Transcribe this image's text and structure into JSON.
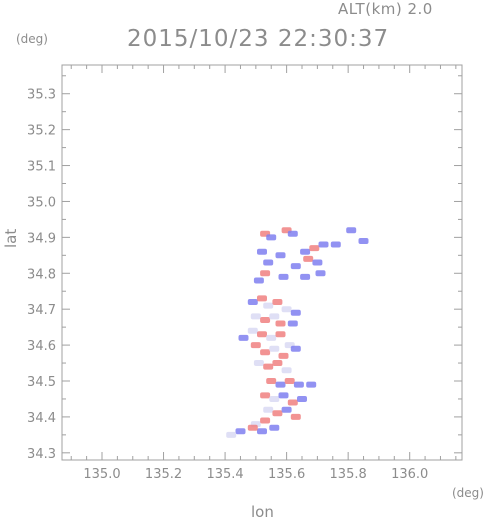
{
  "header": {
    "alt_text": "ALT(km) 2.0",
    "timestamp": "2015/10/23 22:30:37"
  },
  "chart_data": {
    "type": "heatmap",
    "title": "2015/10/23 22:30:37",
    "xlabel": "lon",
    "ylabel": "lat",
    "x_unit": "(deg)",
    "y_unit": "(deg)",
    "xlim": [
      134.87,
      136.17
    ],
    "ylim": [
      34.28,
      35.38
    ],
    "xticks": [
      135.0,
      135.2,
      135.4,
      135.6,
      135.8,
      136.0
    ],
    "xtick_labels": [
      "135.0",
      "135.2",
      "135.4",
      "135.6",
      "135.8",
      "136.0"
    ],
    "yticks": [
      34.3,
      34.4,
      34.5,
      34.6,
      34.7,
      34.8,
      34.9,
      35.0,
      35.1,
      35.2,
      35.3
    ],
    "ytick_labels": [
      "34.3",
      "34.4",
      "34.5",
      "34.6",
      "34.7",
      "34.8",
      "34.9",
      "35.0",
      "35.1",
      "35.2",
      "35.3"
    ],
    "grid": false,
    "colors": {
      "positive": "#f08080",
      "negative": "#7f7ff0",
      "neutral": "#dcdcf4",
      "frame": "#a0a0a0"
    },
    "cells": [
      [
        135.53,
        34.91,
        1
      ],
      [
        135.55,
        34.9,
        -1
      ],
      [
        135.6,
        34.92,
        1
      ],
      [
        135.62,
        34.91,
        -1
      ],
      [
        135.66,
        34.86,
        -1
      ],
      [
        135.69,
        34.87,
        1
      ],
      [
        135.72,
        34.88,
        -1
      ],
      [
        135.76,
        34.88,
        -1
      ],
      [
        135.81,
        34.92,
        -1
      ],
      [
        135.85,
        34.89,
        -1
      ],
      [
        135.52,
        34.86,
        -1
      ],
      [
        135.54,
        34.83,
        -1
      ],
      [
        135.58,
        34.85,
        -1
      ],
      [
        135.63,
        34.82,
        -1
      ],
      [
        135.67,
        34.84,
        1
      ],
      [
        135.7,
        34.83,
        -1
      ],
      [
        135.71,
        34.8,
        -1
      ],
      [
        135.66,
        34.79,
        -1
      ],
      [
        135.59,
        34.79,
        -1
      ],
      [
        135.53,
        34.8,
        1
      ],
      [
        135.51,
        34.78,
        -1
      ],
      [
        135.49,
        34.72,
        -1
      ],
      [
        135.52,
        34.73,
        1
      ],
      [
        135.54,
        34.71,
        0
      ],
      [
        135.57,
        34.72,
        1
      ],
      [
        135.6,
        34.7,
        0
      ],
      [
        135.63,
        34.69,
        -1
      ],
      [
        135.5,
        34.68,
        0
      ],
      [
        135.53,
        34.67,
        1
      ],
      [
        135.56,
        34.68,
        0
      ],
      [
        135.58,
        34.66,
        1
      ],
      [
        135.62,
        34.66,
        -1
      ],
      [
        135.49,
        34.64,
        0
      ],
      [
        135.52,
        34.63,
        1
      ],
      [
        135.55,
        34.62,
        0
      ],
      [
        135.58,
        34.63,
        1
      ],
      [
        135.61,
        34.6,
        0
      ],
      [
        135.46,
        34.62,
        -1
      ],
      [
        135.5,
        34.6,
        1
      ],
      [
        135.53,
        34.58,
        1
      ],
      [
        135.56,
        34.59,
        0
      ],
      [
        135.59,
        34.57,
        1
      ],
      [
        135.63,
        34.59,
        -1
      ],
      [
        135.51,
        34.55,
        0
      ],
      [
        135.54,
        34.54,
        1
      ],
      [
        135.57,
        34.55,
        1
      ],
      [
        135.6,
        34.53,
        0
      ],
      [
        135.55,
        34.5,
        1
      ],
      [
        135.58,
        34.49,
        -1
      ],
      [
        135.61,
        34.5,
        1
      ],
      [
        135.64,
        34.49,
        -1
      ],
      [
        135.68,
        34.49,
        -1
      ],
      [
        135.53,
        34.46,
        1
      ],
      [
        135.56,
        34.45,
        0
      ],
      [
        135.59,
        34.46,
        -1
      ],
      [
        135.62,
        34.44,
        1
      ],
      [
        135.65,
        34.45,
        -1
      ],
      [
        135.54,
        34.42,
        0
      ],
      [
        135.57,
        34.41,
        1
      ],
      [
        135.6,
        34.42,
        -1
      ],
      [
        135.63,
        34.4,
        1
      ],
      [
        135.5,
        34.38,
        0
      ],
      [
        135.53,
        34.39,
        1
      ],
      [
        135.56,
        34.37,
        -1
      ],
      [
        135.52,
        34.36,
        -1
      ],
      [
        135.49,
        34.37,
        1
      ],
      [
        135.45,
        34.36,
        -1
      ],
      [
        135.42,
        34.35,
        0
      ]
    ]
  }
}
